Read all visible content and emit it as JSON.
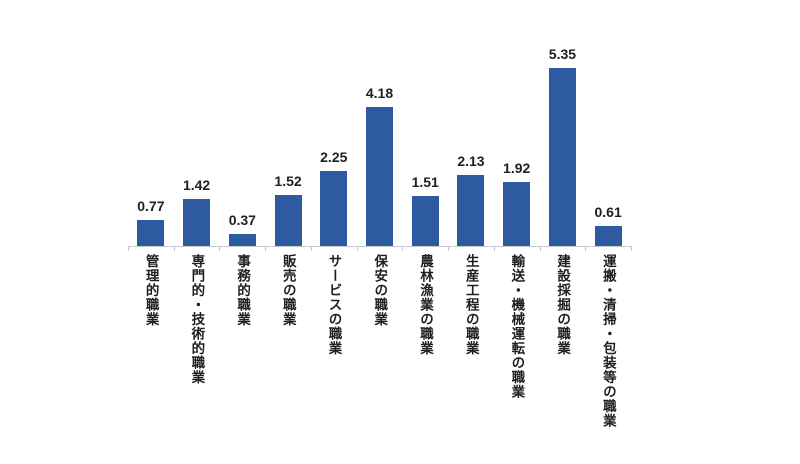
{
  "chart_data": {
    "type": "bar",
    "title": "",
    "xlabel": "",
    "ylabel": "",
    "grid": false,
    "legend": "none",
    "ylim": [
      0,
      5.8
    ],
    "categories": [
      "管理的職業",
      "専門的・技術的職業",
      "事務的職業",
      "販売の職業",
      "サービスの職業",
      "保安の職業",
      "農林漁業の職業",
      "生産工程の職業",
      "輸送・機械運転の職業",
      "建設採掘の職業",
      "運搬・清掃・包装等の職業"
    ],
    "values": [
      0.77,
      1.42,
      0.37,
      1.52,
      2.25,
      4.18,
      1.51,
      2.13,
      1.92,
      5.35,
      0.61
    ],
    "data_labels": [
      "0.77",
      "1.42",
      "0.37",
      "1.52",
      "2.25",
      "4.18",
      "1.51",
      "2.13",
      "1.92",
      "5.35",
      "0.61"
    ],
    "colors": {
      "bar": "#2E5B9F",
      "axis": "#C6C6C6",
      "text": "#1F1F1F"
    }
  }
}
